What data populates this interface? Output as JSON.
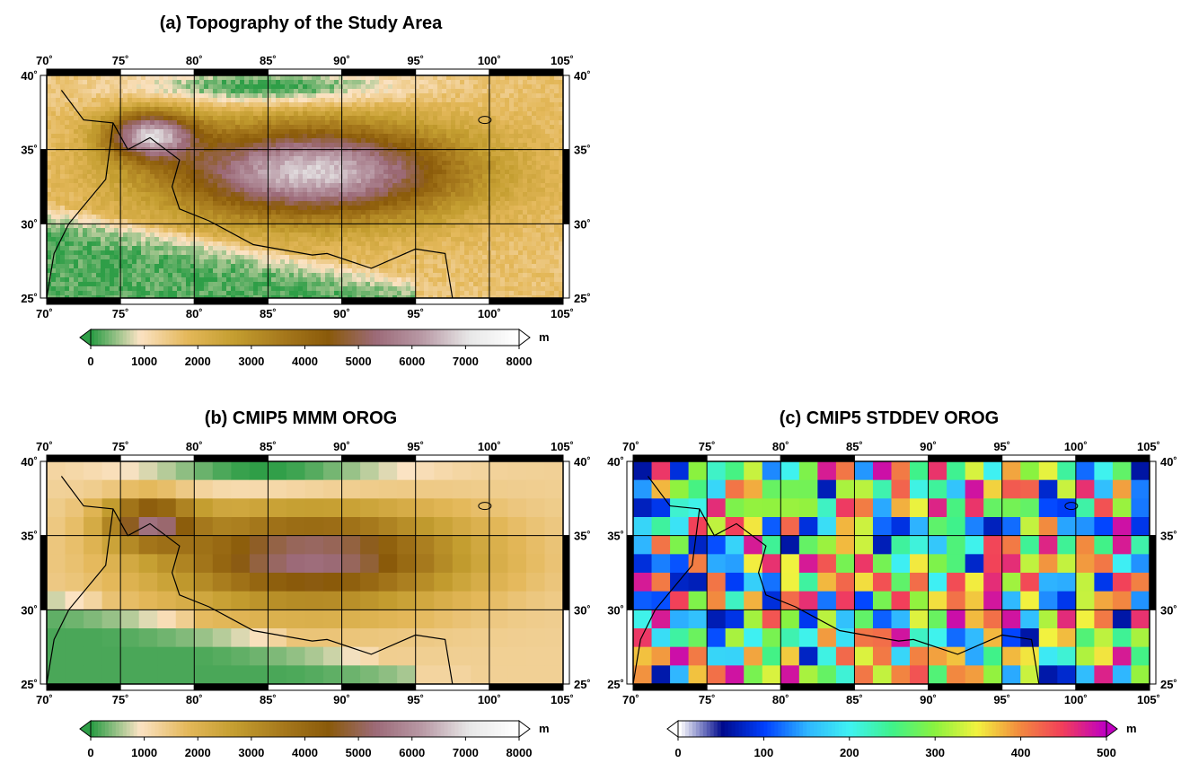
{
  "panels": {
    "a": {
      "title": "(a) Topography of the Study Area",
      "lon_ticks": [
        "70˚",
        "75˚",
        "80˚",
        "85˚",
        "90˚",
        "95˚",
        "100˚",
        "105˚"
      ],
      "lat_ticks": [
        "40˚",
        "35˚",
        "30˚",
        "25˚"
      ],
      "colorbar": {
        "unit": "m",
        "ticks": [
          "0",
          "1000",
          "2000",
          "3000",
          "4000",
          "5000",
          "6000",
          "7000",
          "8000"
        ]
      }
    },
    "b": {
      "title": "(b) CMIP5 MMM OROG",
      "lon_ticks": [
        "70˚",
        "75˚",
        "80˚",
        "85˚",
        "90˚",
        "95˚",
        "100˚",
        "105˚"
      ],
      "lat_ticks": [
        "40˚",
        "35˚",
        "30˚",
        "25˚"
      ],
      "colorbar": {
        "unit": "m",
        "ticks": [
          "0",
          "1000",
          "2000",
          "3000",
          "4000",
          "5000",
          "6000",
          "7000",
          "8000"
        ]
      }
    },
    "c": {
      "title": "(c) CMIP5 STDDEV OROG",
      "lon_ticks": [
        "70˚",
        "75˚",
        "80˚",
        "85˚",
        "90˚",
        "95˚",
        "100˚",
        "105˚"
      ],
      "lat_ticks": [
        "40˚",
        "35˚",
        "30˚",
        "25˚"
      ],
      "colorbar": {
        "unit": "m",
        "ticks": [
          "0",
          "100",
          "200",
          "300",
          "400",
          "500"
        ]
      }
    }
  },
  "map_extent": {
    "lon_min": 70,
    "lon_max": 105,
    "lat_min": 25,
    "lat_max": 40
  },
  "colors": {
    "topo": [
      "#2e9e47",
      "#fbe3c4",
      "#e4b85a",
      "#c49e30",
      "#a77a1d",
      "#8a5a0a",
      "#9c6a78",
      "#b99aa6",
      "#e8e8e8",
      "#ffffff"
    ],
    "stddev": [
      "#ffffff",
      "#000a8c",
      "#0040ff",
      "#2fb5ff",
      "#3ff2f2",
      "#3ff28a",
      "#8af23f",
      "#f2f23f",
      "#f28a3f",
      "#f23f5a",
      "#c000c0"
    ]
  }
}
